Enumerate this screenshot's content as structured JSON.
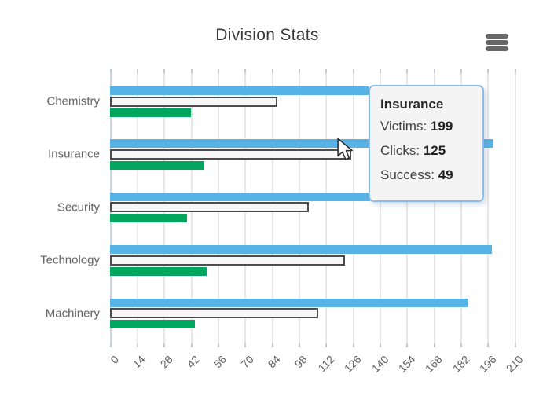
{
  "title": "Division Stats",
  "menu": {
    "icon": "hamburger-icon"
  },
  "colors": {
    "victims": "#57b2e5",
    "clicks_fill": "#f7f7f7",
    "clicks_border": "#4c4c4c",
    "success": "#00a65d",
    "grid": "#e7e7e7",
    "title_text": "#3a3a3a",
    "category_label": "#636363",
    "axis_label": "#606060",
    "tooltip_border": "#8cbce6",
    "tooltip_bg": "#f4f4f4"
  },
  "chart_data": {
    "type": "bar",
    "orientation": "horizontal",
    "title": "Division Stats",
    "categories": [
      "Chemistry",
      "Insurance",
      "Security",
      "Technology",
      "Machinery"
    ],
    "series": [
      {
        "name": "Victims",
        "color": "#57b2e5",
        "values": [
          134,
          199,
          135,
          198,
          186
        ]
      },
      {
        "name": "Clicks",
        "color": "#f7f7f7",
        "values": [
          87,
          125,
          103,
          122,
          108
        ]
      },
      {
        "name": "Success",
        "color": "#00a65d",
        "values": [
          42,
          49,
          40,
          50,
          44
        ]
      }
    ],
    "x_ticks": [
      0,
      14,
      28,
      42,
      56,
      70,
      84,
      98,
      112,
      126,
      140,
      154,
      168,
      182,
      196,
      210
    ],
    "xlim": [
      0,
      210
    ],
    "grid": true,
    "legend": false,
    "note": "Security and Chemistry Victims bar ends are partially hidden behind the tooltip"
  },
  "tooltip": {
    "category": "Insurance",
    "rows": [
      {
        "label": "Victims: ",
        "value": "199"
      },
      {
        "label": "Clicks: ",
        "value": "125"
      },
      {
        "label": "Success: ",
        "value": "49"
      }
    ]
  }
}
